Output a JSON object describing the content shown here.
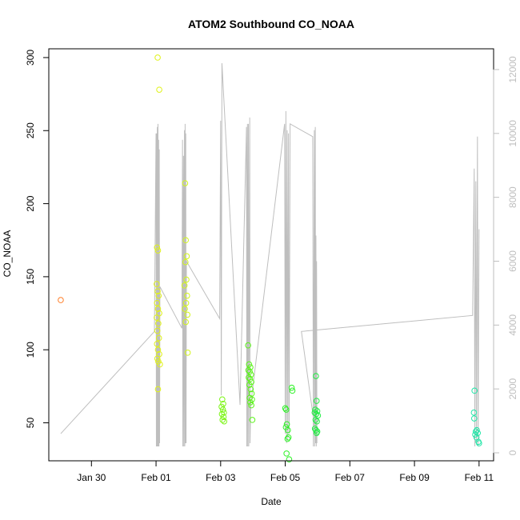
{
  "chart_data": {
    "type": "scatter",
    "title": "ATOM2 Southbound CO_NOAA",
    "xlabel": "Date",
    "ylabel": "CO_NOAA",
    "x_ticks": [
      {
        "label": "Jan 30",
        "day": 30
      },
      {
        "label": "Feb 01",
        "day": 32
      },
      {
        "label": "Feb 03",
        "day": 34
      },
      {
        "label": "Feb 05",
        "day": 36
      },
      {
        "label": "Feb 07",
        "day": 38
      },
      {
        "label": "Feb 09",
        "day": 40
      },
      {
        "label": "Feb 11",
        "day": 42
      }
    ],
    "xlim": [
      28.68,
      42.45
    ],
    "ylim": [
      24.0,
      306.0
    ],
    "y_ticks": [
      50,
      100,
      150,
      200,
      250,
      300
    ],
    "y2lim": [
      -250,
      12650
    ],
    "y2_ticks": [
      0,
      2000,
      4000,
      6000,
      8000,
      10000,
      12000
    ],
    "grid": false,
    "scatter_points": [
      {
        "x": 29.05,
        "y": 134,
        "color": "#ff7f2a"
      },
      {
        "x": 32.05,
        "y": 300,
        "color": "#e0f218"
      },
      {
        "x": 32.1,
        "y": 278,
        "color": "#e0f218"
      },
      {
        "x": 32.03,
        "y": 170,
        "color": "#e0f218"
      },
      {
        "x": 32.06,
        "y": 168,
        "color": "#e0f218"
      },
      {
        "x": 32.02,
        "y": 145,
        "color": "#e0f218"
      },
      {
        "x": 32.05,
        "y": 140,
        "color": "#e0f218"
      },
      {
        "x": 32.08,
        "y": 137,
        "color": "#e0f218"
      },
      {
        "x": 32.03,
        "y": 132,
        "color": "#e0f218"
      },
      {
        "x": 32.06,
        "y": 128,
        "color": "#e0f218"
      },
      {
        "x": 32.1,
        "y": 125,
        "color": "#e0f218"
      },
      {
        "x": 32.02,
        "y": 122,
        "color": "#e0f218"
      },
      {
        "x": 32.07,
        "y": 118,
        "color": "#e0f218"
      },
      {
        "x": 32.04,
        "y": 113,
        "color": "#e0f218"
      },
      {
        "x": 32.09,
        "y": 108,
        "color": "#e0f218"
      },
      {
        "x": 32.03,
        "y": 104,
        "color": "#e0f218"
      },
      {
        "x": 32.06,
        "y": 100,
        "color": "#e0f218"
      },
      {
        "x": 32.1,
        "y": 97,
        "color": "#e0f218"
      },
      {
        "x": 32.04,
        "y": 94,
        "color": "#e0f218"
      },
      {
        "x": 32.07,
        "y": 92,
        "color": "#e0f218"
      },
      {
        "x": 32.12,
        "y": 90,
        "color": "#e0f218"
      },
      {
        "x": 32.06,
        "y": 73,
        "color": "#e0f218"
      },
      {
        "x": 32.9,
        "y": 214,
        "color": "#d2f51a"
      },
      {
        "x": 32.92,
        "y": 175,
        "color": "#d2f51a"
      },
      {
        "x": 32.95,
        "y": 164,
        "color": "#d2f51a"
      },
      {
        "x": 32.91,
        "y": 160,
        "color": "#d2f51a"
      },
      {
        "x": 32.94,
        "y": 148,
        "color": "#d2f51a"
      },
      {
        "x": 32.88,
        "y": 144,
        "color": "#d2f51a"
      },
      {
        "x": 32.96,
        "y": 137,
        "color": "#d2f51a"
      },
      {
        "x": 32.93,
        "y": 132,
        "color": "#d2f51a"
      },
      {
        "x": 32.89,
        "y": 128,
        "color": "#d2f51a"
      },
      {
        "x": 32.97,
        "y": 124,
        "color": "#d2f51a"
      },
      {
        "x": 32.92,
        "y": 119,
        "color": "#d2f51a"
      },
      {
        "x": 32.98,
        "y": 98,
        "color": "#d2f51a"
      },
      {
        "x": 34.05,
        "y": 66,
        "color": "#7cf516"
      },
      {
        "x": 34.08,
        "y": 63,
        "color": "#7cf516"
      },
      {
        "x": 34.03,
        "y": 61,
        "color": "#7cf516"
      },
      {
        "x": 34.07,
        "y": 59,
        "color": "#7cf516"
      },
      {
        "x": 34.1,
        "y": 57,
        "color": "#7cf516"
      },
      {
        "x": 34.04,
        "y": 56,
        "color": "#7cf516"
      },
      {
        "x": 34.09,
        "y": 54,
        "color": "#7cf516"
      },
      {
        "x": 34.06,
        "y": 52,
        "color": "#7cf516"
      },
      {
        "x": 34.11,
        "y": 51,
        "color": "#7cf516"
      },
      {
        "x": 34.85,
        "y": 103,
        "color": "#5af519"
      },
      {
        "x": 34.88,
        "y": 90,
        "color": "#5af519"
      },
      {
        "x": 34.92,
        "y": 88,
        "color": "#5af519"
      },
      {
        "x": 34.86,
        "y": 86,
        "color": "#5af519"
      },
      {
        "x": 34.9,
        "y": 85,
        "color": "#5af519"
      },
      {
        "x": 34.94,
        "y": 83,
        "color": "#5af519"
      },
      {
        "x": 34.87,
        "y": 81,
        "color": "#5af519"
      },
      {
        "x": 34.91,
        "y": 80,
        "color": "#5af519"
      },
      {
        "x": 34.95,
        "y": 78,
        "color": "#5af519"
      },
      {
        "x": 34.89,
        "y": 76,
        "color": "#5af519"
      },
      {
        "x": 34.93,
        "y": 73,
        "color": "#5af519"
      },
      {
        "x": 34.96,
        "y": 70,
        "color": "#5af519"
      },
      {
        "x": 34.9,
        "y": 67,
        "color": "#5af519"
      },
      {
        "x": 34.97,
        "y": 66,
        "color": "#5af519"
      },
      {
        "x": 34.92,
        "y": 64,
        "color": "#5af519"
      },
      {
        "x": 34.95,
        "y": 62,
        "color": "#5af519"
      },
      {
        "x": 34.98,
        "y": 52,
        "color": "#5af519"
      },
      {
        "x": 36.0,
        "y": 60,
        "color": "#2ef227"
      },
      {
        "x": 36.03,
        "y": 59,
        "color": "#2ef227"
      },
      {
        "x": 36.05,
        "y": 49,
        "color": "#2ef227"
      },
      {
        "x": 36.02,
        "y": 47,
        "color": "#2ef227"
      },
      {
        "x": 36.08,
        "y": 45,
        "color": "#2ef227"
      },
      {
        "x": 36.1,
        "y": 40,
        "color": "#2ef227"
      },
      {
        "x": 36.07,
        "y": 39,
        "color": "#2ef227"
      },
      {
        "x": 36.04,
        "y": 29,
        "color": "#2ef227"
      },
      {
        "x": 36.12,
        "y": 25,
        "color": "#2ef227"
      },
      {
        "x": 36.2,
        "y": 74,
        "color": "#2ef227"
      },
      {
        "x": 36.22,
        "y": 72,
        "color": "#2ef227"
      },
      {
        "x": 36.95,
        "y": 82,
        "color": "#22ee44"
      },
      {
        "x": 36.97,
        "y": 65,
        "color": "#22ee44"
      },
      {
        "x": 36.93,
        "y": 59,
        "color": "#22ee44"
      },
      {
        "x": 36.99,
        "y": 58,
        "color": "#22ee44"
      },
      {
        "x": 36.91,
        "y": 57,
        "color": "#22ee44"
      },
      {
        "x": 36.96,
        "y": 56,
        "color": "#22ee44"
      },
      {
        "x": 37.01,
        "y": 55,
        "color": "#22ee44"
      },
      {
        "x": 36.94,
        "y": 52,
        "color": "#22ee44"
      },
      {
        "x": 36.98,
        "y": 51,
        "color": "#22ee44"
      },
      {
        "x": 36.92,
        "y": 46,
        "color": "#22ee44"
      },
      {
        "x": 36.95,
        "y": 45,
        "color": "#22ee44"
      },
      {
        "x": 36.99,
        "y": 44,
        "color": "#22ee44"
      },
      {
        "x": 36.97,
        "y": 43,
        "color": "#22ee44"
      },
      {
        "x": 41.86,
        "y": 72,
        "color": "#22e6a8"
      },
      {
        "x": 41.84,
        "y": 57,
        "color": "#22e6a8"
      },
      {
        "x": 41.85,
        "y": 53,
        "color": "#22e6a8"
      },
      {
        "x": 41.93,
        "y": 45,
        "color": "#22e6a8"
      },
      {
        "x": 41.9,
        "y": 44,
        "color": "#22e6a8"
      },
      {
        "x": 41.96,
        "y": 43,
        "color": "#22e6a8"
      },
      {
        "x": 41.88,
        "y": 42,
        "color": "#22e6a8"
      },
      {
        "x": 41.92,
        "y": 40,
        "color": "#22e6a8"
      },
      {
        "x": 41.98,
        "y": 37,
        "color": "#22e6a8"
      },
      {
        "x": 42.0,
        "y": 36,
        "color": "#22e6a8"
      }
    ],
    "secondary_series": {
      "name": "altitude",
      "axis": "right",
      "color": "#bebebe",
      "points": [
        [
          29.05,
          600
        ],
        [
          31.95,
          3800
        ],
        [
          32.0,
          10000
        ],
        [
          32.01,
          200
        ],
        [
          32.02,
          10000
        ],
        [
          32.03,
          200
        ],
        [
          32.04,
          10200
        ],
        [
          32.05,
          200
        ],
        [
          32.06,
          10300
        ],
        [
          32.07,
          200
        ],
        [
          32.08,
          9800
        ],
        [
          32.09,
          200
        ],
        [
          32.1,
          9500
        ],
        [
          32.11,
          300
        ],
        [
          32.12,
          5200
        ],
        [
          32.8,
          3900
        ],
        [
          32.82,
          9800
        ],
        [
          32.83,
          200
        ],
        [
          32.85,
          9300
        ],
        [
          32.86,
          200
        ],
        [
          32.88,
          10100
        ],
        [
          32.89,
          200
        ],
        [
          32.9,
          10300
        ],
        [
          32.91,
          300
        ],
        [
          32.92,
          10000
        ],
        [
          32.93,
          300
        ],
        [
          32.94,
          6000
        ],
        [
          33.97,
          4200
        ],
        [
          34.0,
          10400
        ],
        [
          34.02,
          1800
        ],
        [
          34.04,
          12200
        ],
        [
          34.6,
          1500
        ],
        [
          34.8,
          10200
        ],
        [
          34.81,
          200
        ],
        [
          34.83,
          10300
        ],
        [
          34.84,
          200
        ],
        [
          34.86,
          10300
        ],
        [
          34.87,
          200
        ],
        [
          34.9,
          10500
        ],
        [
          34.91,
          300
        ],
        [
          34.93,
          1500
        ],
        [
          35.98,
          10300
        ],
        [
          36.0,
          600
        ],
        [
          36.02,
          10700
        ],
        [
          36.04,
          300
        ],
        [
          36.06,
          10100
        ],
        [
          36.08,
          400
        ],
        [
          36.1,
          10000
        ],
        [
          36.12,
          600
        ],
        [
          36.15,
          10300
        ],
        [
          36.85,
          9900
        ],
        [
          36.87,
          200
        ],
        [
          36.9,
          10100
        ],
        [
          36.91,
          200
        ],
        [
          36.93,
          10200
        ],
        [
          36.94,
          300
        ],
        [
          36.95,
          6800
        ],
        [
          36.96,
          200
        ],
        [
          36.97,
          6000
        ],
        [
          36.98,
          300
        ],
        [
          36.5,
          3800
        ],
        [
          41.8,
          4300
        ],
        [
          41.85,
          8900
        ],
        [
          41.87,
          200
        ],
        [
          41.9,
          8500
        ],
        [
          41.92,
          300
        ],
        [
          41.95,
          9900
        ],
        [
          41.97,
          200
        ],
        [
          42.0,
          7000
        ]
      ]
    }
  }
}
